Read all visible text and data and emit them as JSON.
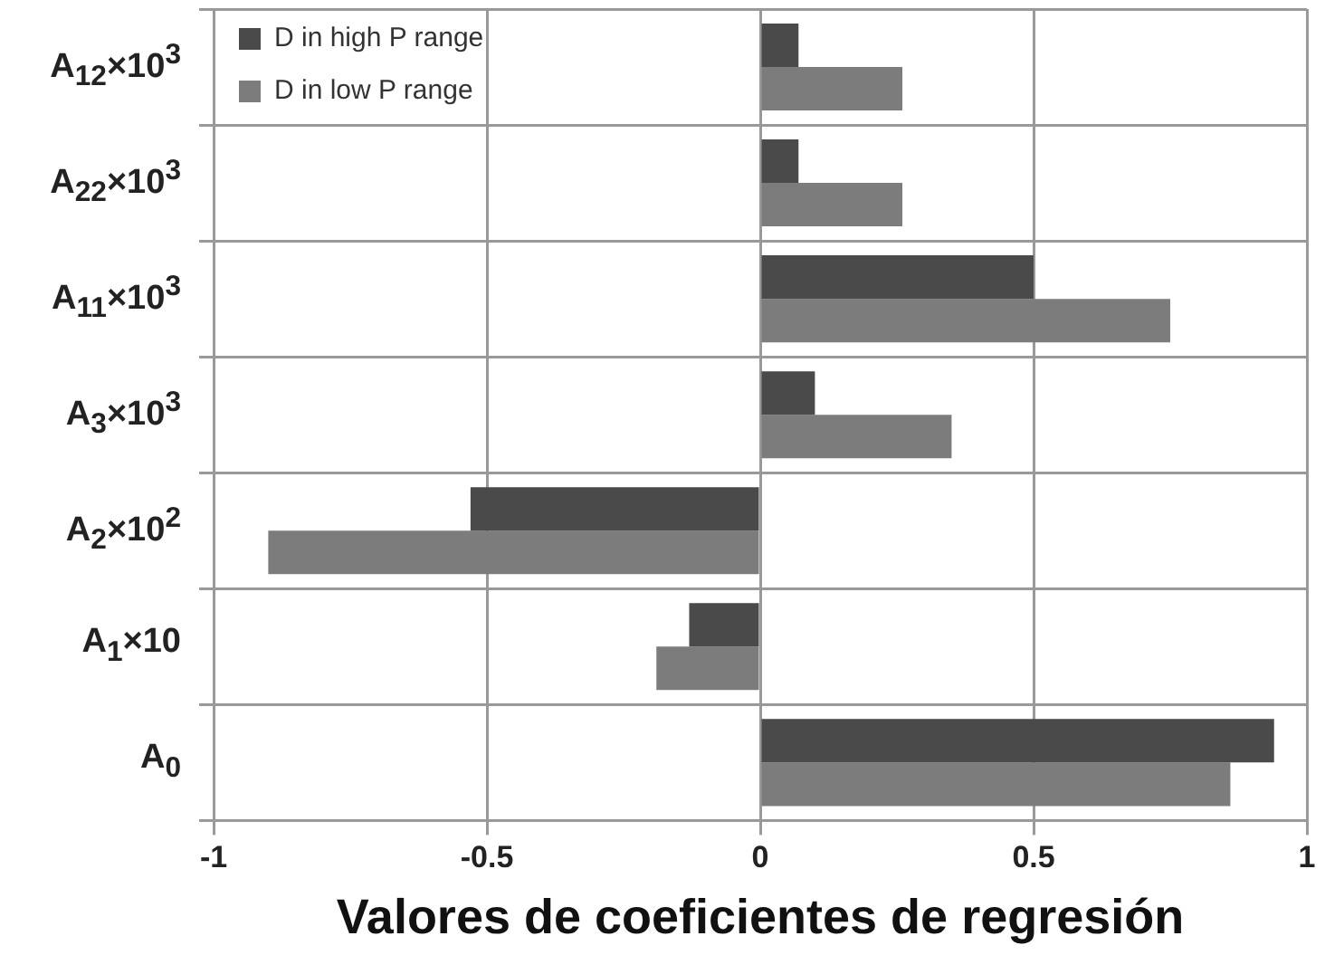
{
  "chart_data": {
    "type": "bar",
    "orientation": "horizontal",
    "xlabel": "Valores de coeficientes de regresión",
    "categories": [
      "A$_{12}$×10$^{3}$",
      "A$_{22}$×10$^{3}$",
      "A$_{11}$×10$^{3}$",
      "A$_{3}$×10$^{3}$",
      "A$_{2}$×10$^{2}$",
      "A$_{1}$×10",
      "A$_{0}$"
    ],
    "series": [
      {
        "name": "D in high P range",
        "color": "#4a4a4a",
        "values": [
          0.07,
          0.07,
          0.5,
          0.1,
          -0.53,
          -0.13,
          0.94
        ]
      },
      {
        "name": "D in low P range",
        "color": "#7c7c7c",
        "values": [
          0.26,
          0.26,
          0.75,
          0.35,
          -0.9,
          -0.19,
          0.86
        ]
      }
    ],
    "xlim": [
      -1,
      1
    ],
    "xticks": [
      -1,
      -0.5,
      0,
      0.5,
      1
    ],
    "grid": true,
    "legend": "top left"
  }
}
